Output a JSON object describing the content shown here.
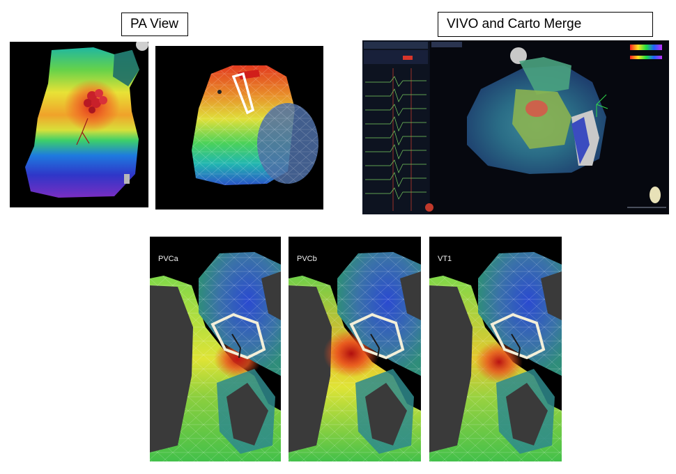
{
  "titles": {
    "pa_view": "PA View",
    "vivo_carto": "VIVO and Carto Merge"
  },
  "bottom_panels": [
    {
      "label": "PVCa"
    },
    {
      "label": "PVCb"
    },
    {
      "label": "VT1"
    }
  ]
}
